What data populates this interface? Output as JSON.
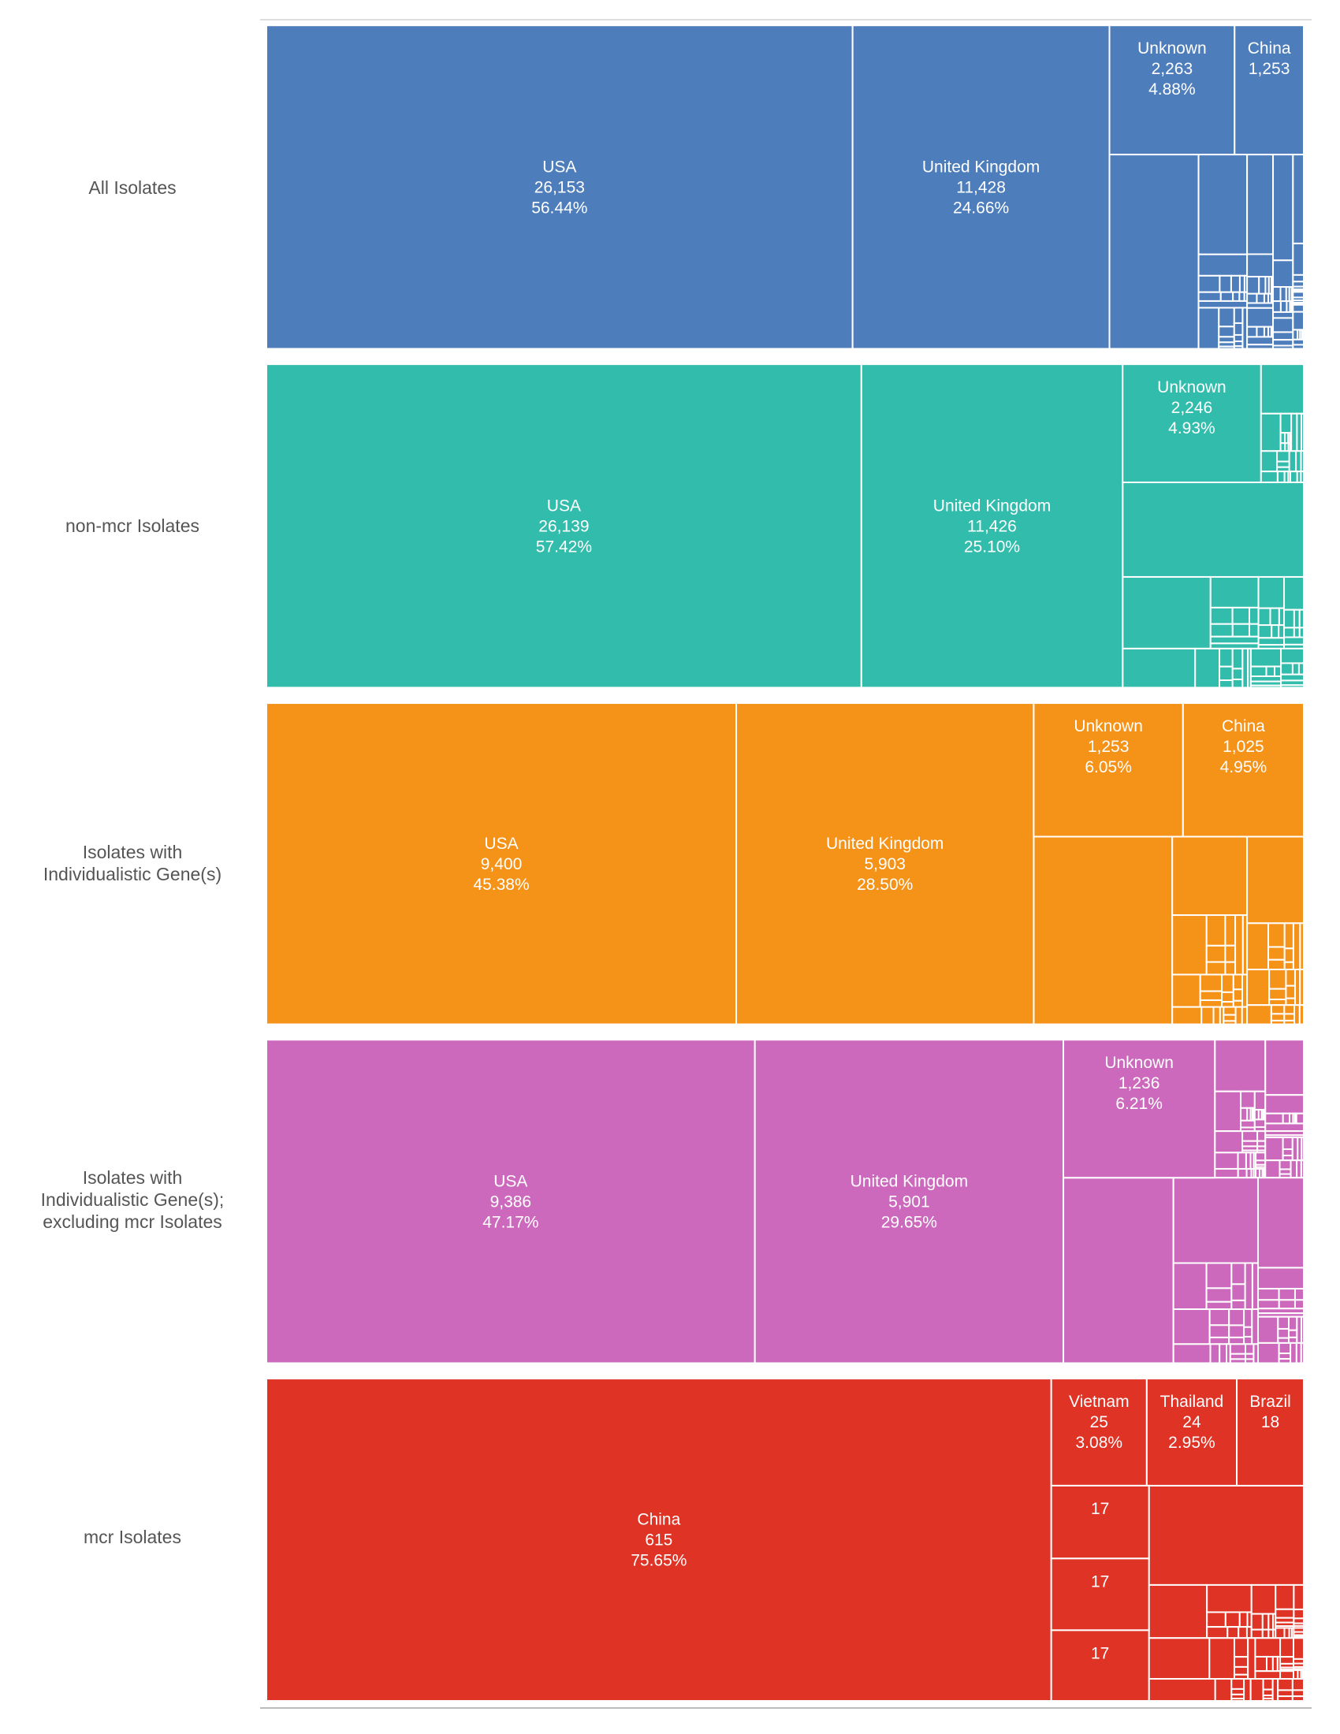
{
  "chart_data": {
    "type": "treemap",
    "panels": [
      {
        "name": "All Isolates",
        "color": "#4e7dbc",
        "labeled": [
          {
            "name": "USA",
            "value": 26153,
            "percent": "56.44%"
          },
          {
            "name": "United Kingdom",
            "value": 11428,
            "percent": "24.66%"
          },
          {
            "name": "Unknown",
            "value": 2263,
            "percent": "4.88%"
          },
          {
            "name": "China",
            "value": 1253
          }
        ]
      },
      {
        "name": "non-mcr Isolates",
        "color": "#31bcab",
        "labeled": [
          {
            "name": "USA",
            "value": 26139,
            "percent": "57.42%"
          },
          {
            "name": "United Kingdom",
            "value": 11426,
            "percent": "25.10%"
          },
          {
            "name": "Unknown",
            "value": 2246,
            "percent": "4.93%"
          }
        ]
      },
      {
        "name": "Isolates with Individualistic Gene(s)",
        "name_lines": [
          "Isolates with",
          "Individualistic Gene(s)"
        ],
        "color": "#f59218",
        "labeled": [
          {
            "name": "USA",
            "value": 9400,
            "percent": "45.38%"
          },
          {
            "name": "United Kingdom",
            "value": 5903,
            "percent": "28.50%"
          },
          {
            "name": "Unknown",
            "value": 1253,
            "percent": "6.05%"
          },
          {
            "name": "China",
            "value": 1025,
            "percent": "4.95%"
          }
        ]
      },
      {
        "name": "Isolates with Individualistic Gene(s); excluding mcr Isolates",
        "name_lines": [
          "Isolates with",
          "Individualistic Gene(s);",
          "excluding mcr Isolates"
        ],
        "color": "#cc69bd",
        "labeled": [
          {
            "name": "USA",
            "value": 9386,
            "percent": "47.17%"
          },
          {
            "name": "United Kingdom",
            "value": 5901,
            "percent": "29.65%"
          },
          {
            "name": "Unknown",
            "value": 1236,
            "percent": "6.21%"
          }
        ]
      },
      {
        "name": "mcr Isolates",
        "color": "#df3326",
        "labeled": [
          {
            "name": "China",
            "value": 615,
            "percent": "75.65%"
          },
          {
            "name": "Vietnam",
            "value": 25,
            "percent": "3.08%"
          },
          {
            "name": "Thailand",
            "value": 24,
            "percent": "2.95%"
          },
          {
            "name": "Brazil",
            "value": 18
          },
          {
            "name": "",
            "value": 17
          },
          {
            "name": "",
            "value": 17
          },
          {
            "name": "",
            "value": 17
          }
        ]
      }
    ]
  }
}
